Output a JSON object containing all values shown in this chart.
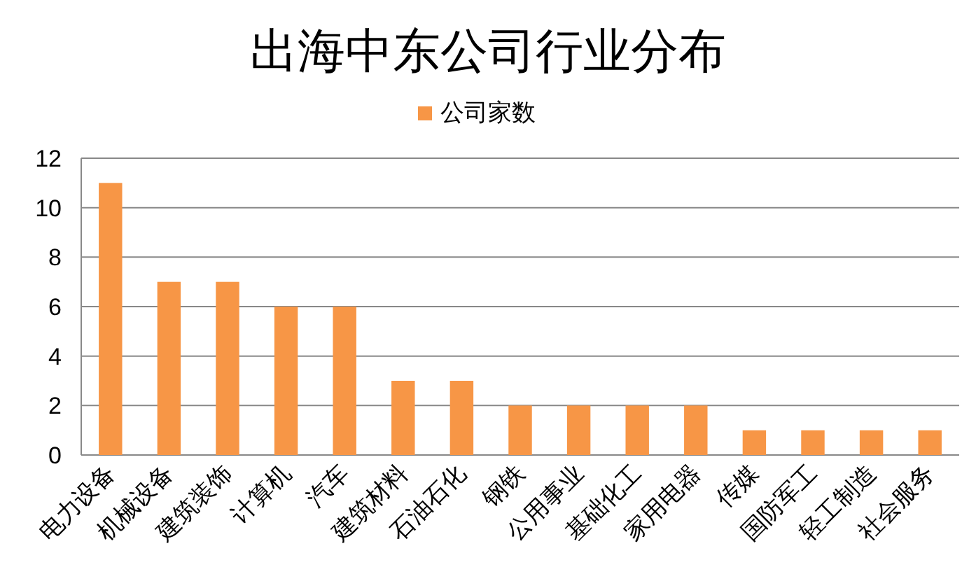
{
  "chart_data": {
    "type": "bar",
    "title": "出海中东公司行业分布",
    "categories": [
      "电力设备",
      "机械设备",
      "建筑装饰",
      "计算机",
      "汽车",
      "建筑材料",
      "石油石化",
      "钢铁",
      "公用事业",
      "基础化工",
      "家用电器",
      "传媒",
      "国防军工",
      "轻工制造",
      "社会服务"
    ],
    "series": [
      {
        "name": "公司家数",
        "color": "#f79646",
        "values": [
          11,
          7,
          7,
          6,
          6,
          3,
          3,
          2,
          2,
          2,
          2,
          1,
          1,
          1,
          1
        ]
      }
    ],
    "ylim": [
      0,
      12
    ],
    "yticks": [
      0,
      2,
      4,
      6,
      8,
      10,
      12
    ],
    "grid": "y",
    "legend": "top"
  }
}
